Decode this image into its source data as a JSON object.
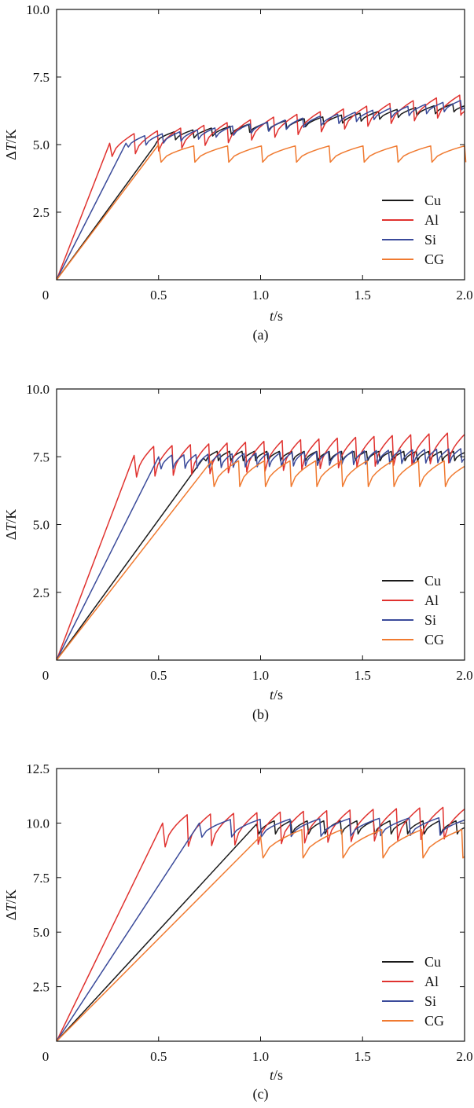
{
  "chart_data": [
    {
      "type": "line",
      "panel_label": "(a)",
      "xlabel_var": "t",
      "xlabel_unit": "/s",
      "ylabel_var": "T",
      "ylabel_prefix": "Δ",
      "ylabel_unit": "/K",
      "xlim": [
        0,
        2.0
      ],
      "ylim": [
        0,
        10.0
      ],
      "xticks": [
        0,
        0.5,
        1.0,
        1.5,
        2.0
      ],
      "xtick_labels": [
        "0",
        "0.5",
        "1.0",
        "1.5",
        "2.0"
      ],
      "yticks": [
        2.5,
        5.0,
        7.5,
        10.0
      ],
      "ytick_labels": [
        "2.5",
        "5.0",
        "7.5",
        "10.0"
      ],
      "legend_position": "bottom-right",
      "series": [
        {
          "name": "Cu",
          "color": "#1a1a1a",
          "ramp_end": [
            0.48,
            4.95
          ],
          "base": 5.1,
          "base_end": 6.25,
          "amp": 0.3,
          "period": 0.085
        },
        {
          "name": "Al",
          "color": "#e0322f",
          "ramp_end": [
            0.26,
            5.05
          ],
          "base": 4.55,
          "base_end": 6.1,
          "amp": 0.75,
          "period": 0.108
        },
        {
          "name": "Si",
          "color": "#3a4a9a",
          "ramp_end": [
            0.34,
            5.05
          ],
          "base": 4.9,
          "base_end": 6.3,
          "amp": 0.35,
          "period": 0.08
        },
        {
          "name": "CG",
          "color": "#f07a30",
          "ramp_end": [
            0.5,
            5.0
          ],
          "base": 4.35,
          "base_end": 4.35,
          "amp": 0.6,
          "period": 0.16
        }
      ]
    },
    {
      "type": "line",
      "panel_label": "(b)",
      "xlabel_var": "t",
      "xlabel_unit": "/s",
      "ylabel_var": "T",
      "ylabel_prefix": "Δ",
      "ylabel_unit": "/K",
      "xlim": [
        0,
        2.0
      ],
      "ylim": [
        0,
        10.0
      ],
      "xticks": [
        0,
        0.5,
        1.0,
        1.5,
        2.0
      ],
      "xtick_labels": [
        "0",
        "0.5",
        "1.0",
        "1.5",
        "2.0"
      ],
      "yticks": [
        2.5,
        5.0,
        7.5,
        10.0
      ],
      "ytick_labels": [
        "2.5",
        "5.0",
        "7.5",
        "10.0"
      ],
      "legend_position": "bottom-right",
      "series": [
        {
          "name": "Cu",
          "color": "#1a1a1a",
          "ramp_end": [
            0.72,
            7.45
          ],
          "base": 7.35,
          "base_end": 7.35,
          "amp": 0.35,
          "period": 0.055
        },
        {
          "name": "Al",
          "color": "#e0322f",
          "ramp_end": [
            0.38,
            7.55
          ],
          "base": 6.75,
          "base_end": 7.3,
          "amp": 1.1,
          "period": 0.084
        },
        {
          "name": "Si",
          "color": "#3a4a9a",
          "ramp_end": [
            0.5,
            7.5
          ],
          "base": 7.05,
          "base_end": 7.3,
          "amp": 0.5,
          "period": 0.053
        },
        {
          "name": "CG",
          "color": "#f07a30",
          "ramp_end": [
            0.76,
            7.35
          ],
          "base": 6.4,
          "base_end": 6.4,
          "amp": 0.95,
          "period": 0.12
        }
      ]
    },
    {
      "type": "line",
      "panel_label": "(c)",
      "xlabel_var": "t",
      "xlabel_unit": "/s",
      "ylabel_var": "T",
      "ylabel_prefix": "Δ",
      "ylabel_unit": "/K",
      "xlim": [
        0,
        2.0
      ],
      "ylim": [
        0,
        12.5
      ],
      "xticks": [
        0,
        0.5,
        1.0,
        1.5,
        2.0
      ],
      "xtick_labels": [
        "0",
        "0.5",
        "1.0",
        "1.5",
        "2.0"
      ],
      "yticks": [
        2.5,
        5.0,
        7.5,
        10.0,
        12.5
      ],
      "ytick_labels": [
        "2.5",
        "5.0",
        "7.5",
        "10.0",
        "12.5"
      ],
      "legend_position": "bottom-right",
      "series": [
        {
          "name": "Cu",
          "color": "#1a1a1a",
          "ramp_end": [
            0.98,
            9.95
          ],
          "base": 9.5,
          "base_end": 9.5,
          "amp": 0.6,
          "period": 0.075
        },
        {
          "name": "Al",
          "color": "#e0322f",
          "ramp_end": [
            0.52,
            10.0
          ],
          "base": 8.9,
          "base_end": 9.3,
          "amp": 1.45,
          "period": 0.108
        },
        {
          "name": "Si",
          "color": "#3a4a9a",
          "ramp_end": [
            0.7,
            10.0
          ],
          "base": 9.35,
          "base_end": 9.45,
          "amp": 0.8,
          "period": 0.14
        },
        {
          "name": "CG",
          "color": "#f07a30",
          "ramp_end": [
            1.0,
            9.4
          ],
          "base": 8.4,
          "base_end": 8.4,
          "amp": 1.3,
          "period": 0.19
        }
      ]
    }
  ]
}
